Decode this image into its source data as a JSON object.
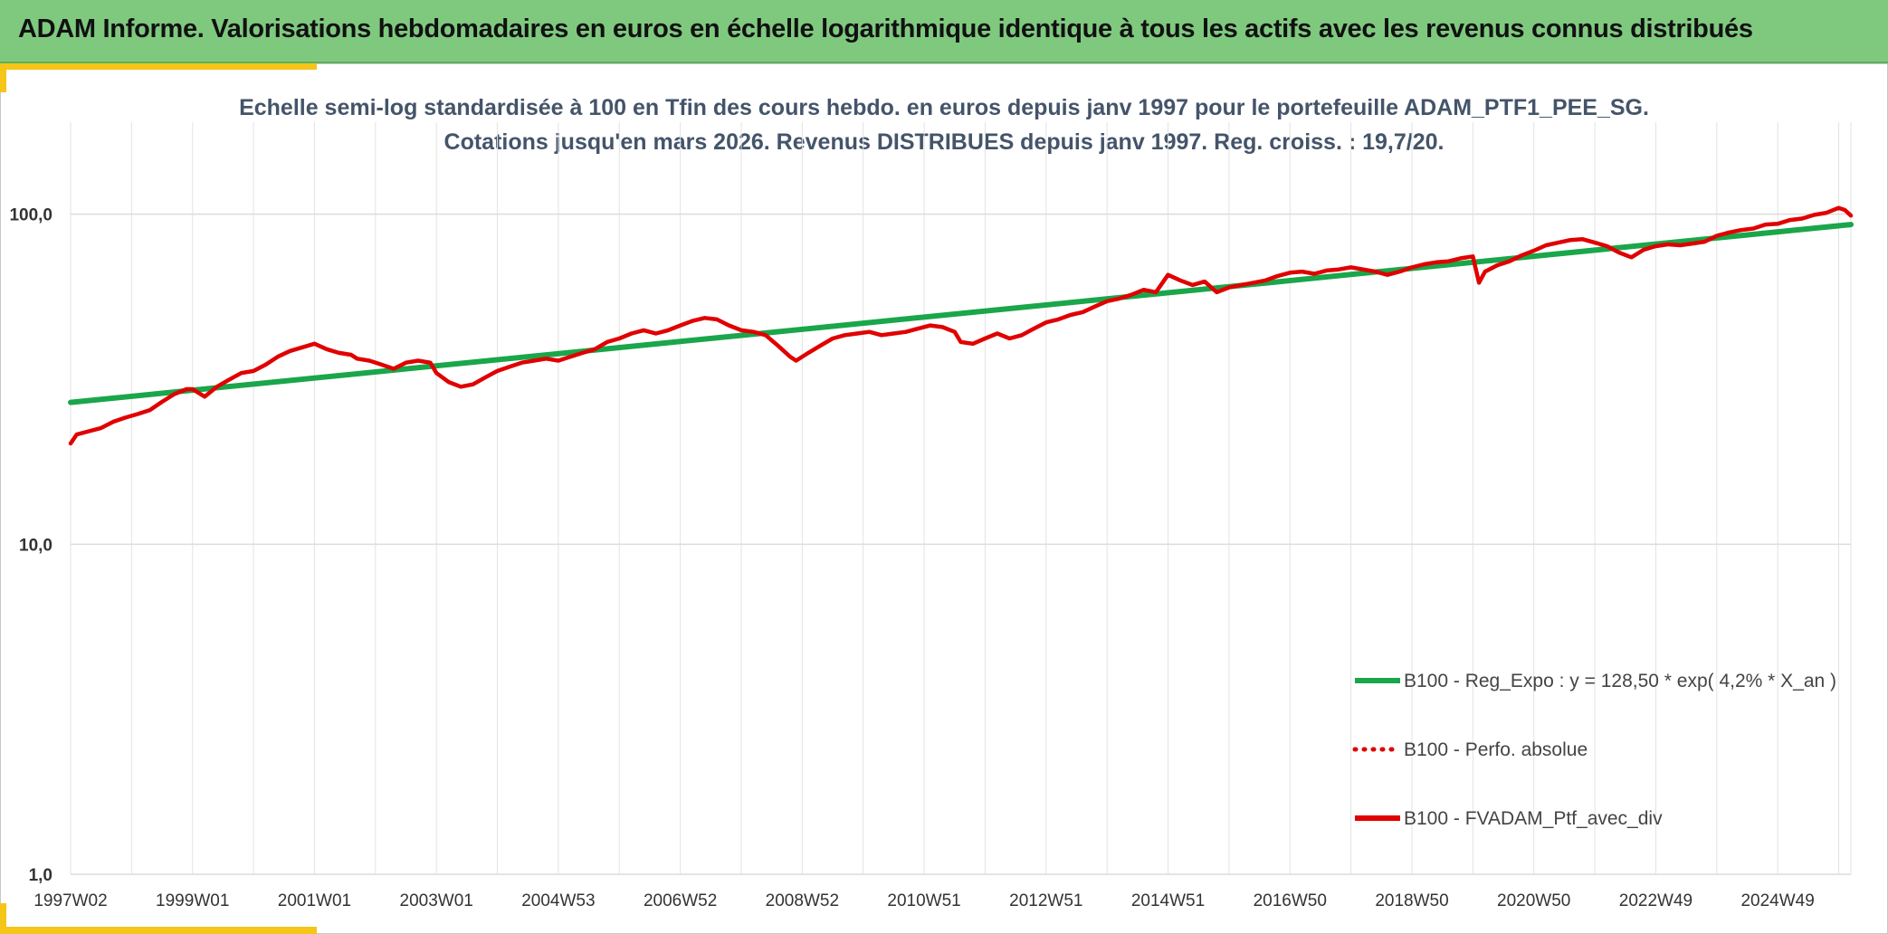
{
  "header": {
    "title": "ADAM Informe. Valorisations hebdomadaires en euros en échelle logarithmique identique à tous les actifs avec les revenus connus distribués"
  },
  "colors": {
    "banner": "#7fc97f",
    "accent": "#f5c518",
    "regression": "#1aa64a",
    "performance": "#e00000"
  },
  "chart_data": {
    "type": "line",
    "title_lines": [
      "Echelle semi-log standardisée à 100 en Tfin des cours hebdo. en euros depuis janv 1997 pour le portefeuille ADAM_PTF1_PEE_SG.",
      "Cotations jusqu'en mars 2026. Revenus DISTRIBUES depuis janv 1997. Reg. croiss. : 19,7/20."
    ],
    "y_scale": "log",
    "ylim": [
      1,
      190
    ],
    "y_ticks": [
      {
        "value": 1,
        "label": "1,0"
      },
      {
        "value": 10,
        "label": "10,0"
      },
      {
        "value": 100,
        "label": "100,0"
      }
    ],
    "x_range": [
      1997.0,
      2026.2
    ],
    "x_ticks": [
      {
        "value": 1997.0,
        "label": "1997W02"
      },
      {
        "value": 1999.0,
        "label": "1999W01"
      },
      {
        "value": 2001.0,
        "label": "2001W01"
      },
      {
        "value": 2003.0,
        "label": "2003W01"
      },
      {
        "value": 2005.0,
        "label": "2004W53"
      },
      {
        "value": 2007.0,
        "label": "2006W52"
      },
      {
        "value": 2009.0,
        "label": "2008W52"
      },
      {
        "value": 2011.0,
        "label": "2010W51"
      },
      {
        "value": 2013.0,
        "label": "2012W51"
      },
      {
        "value": 2015.0,
        "label": "2014W51"
      },
      {
        "value": 2017.0,
        "label": "2016W50"
      },
      {
        "value": 2019.0,
        "label": "2018W50"
      },
      {
        "value": 2021.0,
        "label": "2020W50"
      },
      {
        "value": 2023.0,
        "label": "2022W49"
      },
      {
        "value": 2025.0,
        "label": "2024W49"
      }
    ],
    "grid": true,
    "legend_position": "bottom-right",
    "series": [
      {
        "name": "B100 - Reg_Expo : y = 128,50 * exp( 4,2% *  X_an )",
        "style": "solid",
        "color": "#1aa64a",
        "x": [
          1997.0,
          2026.2
        ],
        "y": [
          26.9,
          93.0
        ]
      },
      {
        "name": "B100 - Perfo. absolue",
        "style": "dotted",
        "color": "#e00000",
        "x": [],
        "y": []
      },
      {
        "name": "B100 - FVADAM_Ptf_avec_div",
        "style": "solid",
        "color": "#e00000",
        "x": [
          1997.0,
          1997.1,
          1997.3,
          1997.5,
          1997.7,
          1997.9,
          1998.1,
          1998.3,
          1998.5,
          1998.7,
          1998.9,
          1999.0,
          1999.2,
          1999.4,
          1999.6,
          1999.8,
          2000.0,
          2000.2,
          2000.4,
          2000.6,
          2000.8,
          2001.0,
          2001.2,
          2001.4,
          2001.6,
          2001.7,
          2001.9,
          2002.1,
          2002.3,
          2002.5,
          2002.7,
          2002.9,
          2003.0,
          2003.2,
          2003.4,
          2003.6,
          2003.8,
          2004.0,
          2004.2,
          2004.4,
          2004.6,
          2004.8,
          2005.0,
          2005.2,
          2005.4,
          2005.6,
          2005.8,
          2006.0,
          2006.2,
          2006.4,
          2006.6,
          2006.8,
          2007.0,
          2007.2,
          2007.4,
          2007.6,
          2007.8,
          2008.0,
          2008.2,
          2008.4,
          2008.6,
          2008.8,
          2008.9,
          2009.1,
          2009.3,
          2009.5,
          2009.7,
          2009.9,
          2010.1,
          2010.3,
          2010.5,
          2010.7,
          2010.9,
          2011.1,
          2011.3,
          2011.5,
          2011.6,
          2011.8,
          2012.0,
          2012.2,
          2012.4,
          2012.6,
          2012.8,
          2013.0,
          2013.2,
          2013.4,
          2013.6,
          2013.8,
          2014.0,
          2014.2,
          2014.4,
          2014.6,
          2014.8,
          2015.0,
          2015.2,
          2015.4,
          2015.6,
          2015.8,
          2016.0,
          2016.2,
          2016.4,
          2016.6,
          2016.8,
          2017.0,
          2017.2,
          2017.4,
          2017.6,
          2017.8,
          2018.0,
          2018.2,
          2018.4,
          2018.6,
          2018.8,
          2019.0,
          2019.2,
          2019.4,
          2019.6,
          2019.8,
          2020.0,
          2020.1,
          2020.2,
          2020.4,
          2020.6,
          2020.8,
          2021.0,
          2021.2,
          2021.4,
          2021.6,
          2021.8,
          2022.0,
          2022.2,
          2022.4,
          2022.6,
          2022.8,
          2023.0,
          2023.2,
          2023.4,
          2023.6,
          2023.8,
          2024.0,
          2024.2,
          2024.4,
          2024.6,
          2024.8,
          2025.0,
          2025.2,
          2025.4,
          2025.6,
          2025.8,
          2026.0,
          2026.1,
          2026.2
        ],
        "y": [
          20.2,
          21.5,
          22.0,
          22.5,
          23.5,
          24.2,
          24.8,
          25.5,
          27.0,
          28.5,
          29.5,
          29.5,
          28.0,
          30.0,
          31.5,
          33.0,
          33.5,
          35.0,
          37.0,
          38.5,
          39.5,
          40.5,
          39.0,
          38.0,
          37.5,
          36.5,
          36.0,
          35.0,
          34.0,
          35.5,
          36.0,
          35.5,
          33.0,
          31.0,
          30.0,
          30.5,
          32.0,
          33.5,
          34.5,
          35.5,
          36.0,
          36.5,
          36.0,
          37.0,
          38.0,
          39.0,
          41.0,
          42.0,
          43.5,
          44.5,
          43.5,
          44.5,
          46.0,
          47.5,
          48.5,
          48.0,
          46.0,
          44.5,
          44.0,
          43.0,
          40.0,
          37.0,
          36.0,
          38.0,
          40.0,
          42.0,
          43.0,
          43.5,
          44.0,
          43.0,
          43.5,
          44.0,
          45.0,
          46.0,
          45.5,
          44.0,
          41.0,
          40.5,
          42.0,
          43.5,
          42.0,
          43.0,
          45.0,
          47.0,
          48.0,
          49.5,
          50.5,
          52.5,
          54.5,
          55.5,
          57.0,
          59.0,
          58.0,
          65.5,
          63.0,
          61.0,
          62.5,
          58.0,
          60.0,
          61.0,
          62.0,
          63.0,
          65.0,
          66.5,
          67.0,
          66.0,
          67.5,
          68.0,
          69.0,
          68.0,
          67.0,
          65.5,
          67.0,
          69.0,
          70.5,
          71.5,
          72.0,
          73.5,
          74.5,
          62.0,
          67.0,
          70.0,
          72.0,
          75.0,
          77.5,
          80.5,
          82.0,
          83.5,
          84.0,
          82.0,
          80.0,
          76.5,
          74.0,
          78.0,
          80.0,
          81.0,
          80.5,
          81.5,
          82.5,
          86.0,
          88.0,
          89.5,
          90.5,
          93.0,
          93.5,
          96.0,
          97.0,
          99.5,
          101.0,
          104.5,
          103.0,
          99.0
        ]
      }
    ]
  }
}
